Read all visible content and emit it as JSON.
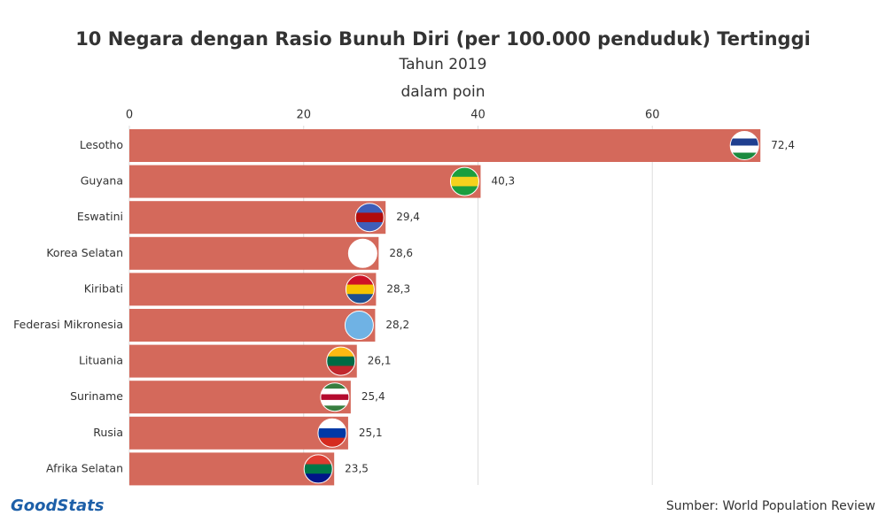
{
  "chart_data": {
    "type": "bar",
    "orientation": "horizontal",
    "title": "10 Negara dengan Rasio Bunuh Diri (per 100.000 penduduk) Tertinggi",
    "subtitle": "Tahun 2019",
    "x_label": "dalam poin",
    "categories": [
      "Lesotho",
      "Guyana",
      "Eswatini",
      "Korea Selatan",
      "Kiribati",
      "Federasi Mikronesia",
      "Lituania",
      "Suriname",
      "Rusia",
      "Afrika Selatan"
    ],
    "values": [
      72.4,
      40.3,
      29.4,
      28.6,
      28.3,
      28.2,
      26.1,
      25.4,
      25.1,
      23.5
    ],
    "value_labels": [
      "72,4",
      "40,3",
      "29,4",
      "28,6",
      "28,3",
      "28,2",
      "26,1",
      "25,4",
      "25,1",
      "23,5"
    ],
    "color": "#d4695b",
    "xlim": [
      0,
      80
    ],
    "xticks": [
      0,
      20,
      40,
      60
    ],
    "grid": true,
    "source": "Sumber: World Population Review",
    "logo": "GoodStats"
  }
}
